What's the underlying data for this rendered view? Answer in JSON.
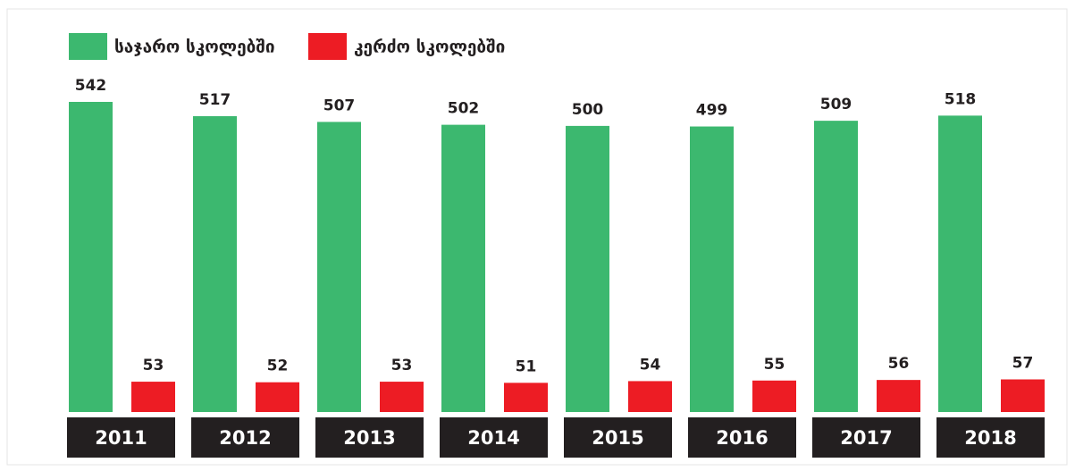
{
  "chart_data": {
    "type": "bar",
    "categories": [
      "2011",
      "2012",
      "2013",
      "2014",
      "2015",
      "2016",
      "2017",
      "2018"
    ],
    "series": [
      {
        "name": "საჯარო სკოლებში",
        "color": "#3cb86f",
        "values": [
          542,
          517,
          507,
          502,
          500,
          499,
          509,
          518
        ]
      },
      {
        "name": "კერძო სკოლებში",
        "color": "#ed1c24",
        "values": [
          53,
          52,
          53,
          51,
          54,
          55,
          56,
          57
        ]
      }
    ],
    "legend": "top-left"
  }
}
